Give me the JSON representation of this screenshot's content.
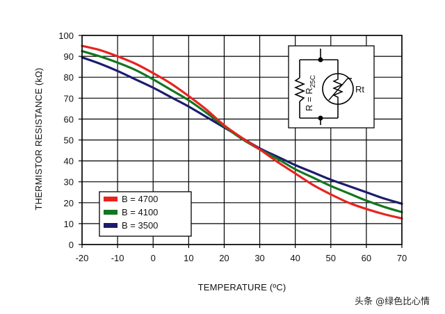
{
  "chart_data": {
    "type": "line",
    "title": "",
    "xlabel": "TEMPERATURE (ºC)",
    "ylabel": "THERMISTOR RESISTANCE (kΩ)",
    "xlim": [
      -20,
      70
    ],
    "ylim": [
      0,
      100
    ],
    "x_ticks": [
      "-20",
      "-10",
      "0",
      "10",
      "20",
      "30",
      "40",
      "50",
      "60",
      "70"
    ],
    "y_ticks": [
      "0",
      "10",
      "20",
      "30",
      "40",
      "50",
      "60",
      "70",
      "80",
      "90",
      "100"
    ],
    "grid": true,
    "legend_position": "bottom-left",
    "x": [
      -20,
      -15,
      -10,
      -5,
      0,
      5,
      10,
      15,
      20,
      25,
      30,
      35,
      40,
      45,
      50,
      55,
      60,
      65,
      70
    ],
    "series": [
      {
        "name": "B = 4700",
        "color": "#e8231f",
        "values": [
          95,
          93,
          90,
          86.5,
          82,
          77,
          71,
          64.5,
          57,
          51,
          45.5,
          39.5,
          34,
          28.5,
          24,
          20,
          17,
          14.5,
          12.5
        ]
      },
      {
        "name": "B = 4100",
        "color": "#13761f",
        "values": [
          92.5,
          90,
          87,
          83.5,
          79,
          74,
          69,
          63,
          56.5,
          50.5,
          45.5,
          41,
          36,
          32,
          28,
          24.5,
          21,
          18,
          15.5
        ]
      },
      {
        "name": "B = 3500",
        "color": "#1c1c6e",
        "values": [
          89.5,
          86.5,
          83,
          79,
          75,
          70.5,
          66,
          61,
          56,
          51,
          46,
          42,
          38,
          34.5,
          31,
          28,
          25,
          22,
          19.5
        ]
      }
    ]
  },
  "inset": {
    "rt_label": "Rt",
    "r_label": "R = R",
    "r_subscript": "25C"
  },
  "watermark": {
    "text": "头条 @绿色比心情"
  }
}
